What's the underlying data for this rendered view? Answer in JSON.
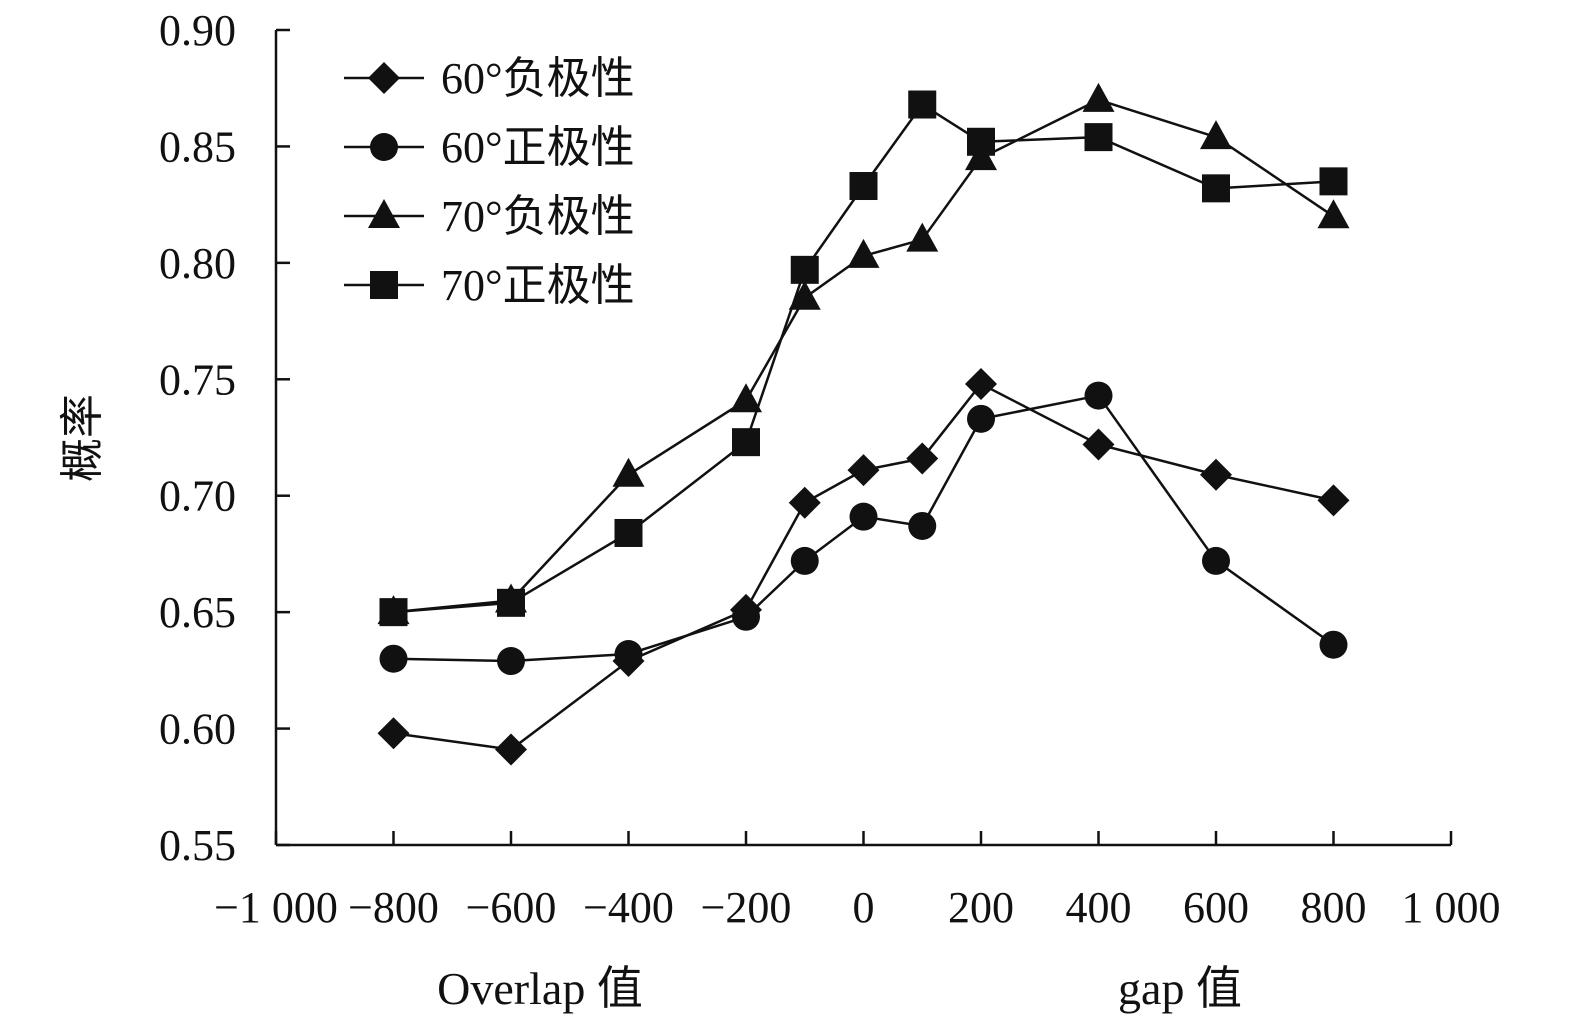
{
  "chart_data": {
    "type": "line",
    "ylabel": "概率",
    "xlabel_left": "Overlap 值",
    "xlabel_right": "gap 值",
    "xlim": [
      -1000,
      1000
    ],
    "ylim": [
      0.55,
      0.9
    ],
    "xticks": [
      -1000,
      -800,
      -600,
      -400,
      -200,
      0,
      200,
      400,
      600,
      800,
      1000
    ],
    "xtick_labels": [
      "−1 000",
      "−800",
      "−600",
      "−400",
      "−200",
      "0",
      "200",
      "400",
      "600",
      "800",
      "1 000"
    ],
    "yticks": [
      0.55,
      0.6,
      0.65,
      0.7,
      0.75,
      0.8,
      0.85,
      0.9
    ],
    "ytick_labels": [
      "0.55",
      "0.60",
      "0.65",
      "0.70",
      "0.75",
      "0.80",
      "0.85",
      "0.90"
    ],
    "grid": false,
    "legend_position": "top-left",
    "x": [
      -800,
      -600,
      -400,
      -200,
      -100,
      0,
      100,
      200,
      400,
      600,
      800
    ],
    "series": [
      {
        "name": "60°负极性",
        "marker": "diamond",
        "values": [
          0.598,
          0.591,
          0.629,
          0.651,
          0.697,
          0.711,
          0.716,
          0.748,
          0.722,
          0.709,
          0.698
        ]
      },
      {
        "name": "60°正极性",
        "marker": "circle",
        "values": [
          0.63,
          0.629,
          0.632,
          0.648,
          0.672,
          0.691,
          0.687,
          0.733,
          0.743,
          0.672,
          0.636
        ]
      },
      {
        "name": "70°负极性",
        "marker": "triangle",
        "values": [
          0.65,
          0.655,
          0.709,
          0.741,
          0.785,
          0.803,
          0.81,
          0.845,
          0.87,
          0.854,
          0.82
        ]
      },
      {
        "name": "70°正极性",
        "marker": "square",
        "values": [
          0.65,
          0.654,
          0.684,
          0.723,
          0.797,
          0.833,
          0.868,
          0.852,
          0.854,
          0.832,
          0.835
        ]
      }
    ]
  }
}
